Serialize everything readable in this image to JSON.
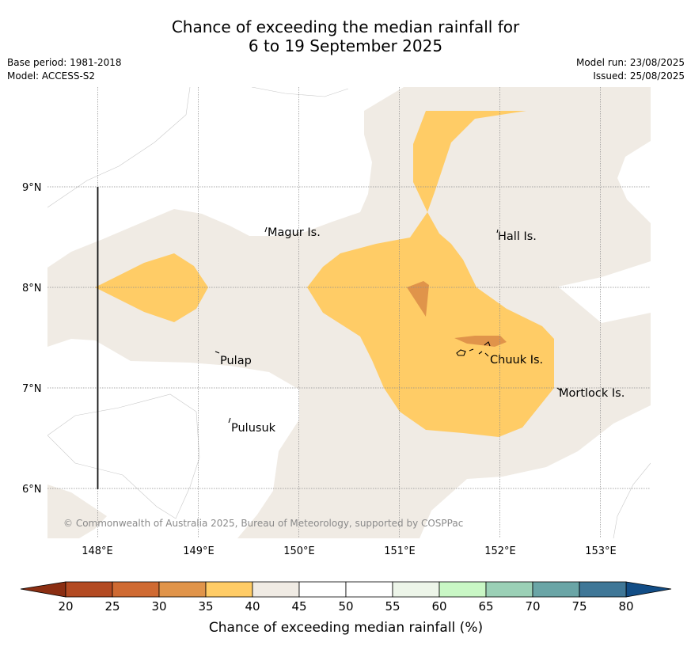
{
  "title_line1": "Chance of exceeding the median rainfall for",
  "title_line2": "6 to 19 September 2025",
  "base_period": "Base period: 1981-2018",
  "model": "Model: ACCESS-S2",
  "model_run": "Model run: 23/08/2025",
  "issued": "Issued: 25/08/2025",
  "map": {
    "lat_labels": [
      "9°N",
      "8°N",
      "7°N",
      "6°N"
    ],
    "lon_labels": [
      "148°E",
      "149°E",
      "150°E",
      "151°E",
      "152°E",
      "153°E"
    ],
    "places": [
      "Magur Is.",
      "Hall Is.",
      "Pulap",
      "Chuuk Is.",
      "Mortlock Is.",
      "Pulusuk"
    ],
    "credit": "© Commonwealth of Australia 2025, Bureau of Meteorology, supported by COSPPac",
    "colors": {
      "band_30_35": "#e0944a",
      "band_35_40": "#ffcc66",
      "band_40_45": "#f0ebe4",
      "background": "#ffffff"
    }
  },
  "colorbar": {
    "label": "Chance of exceeding median rainfall (%)",
    "ticks": [
      "20",
      "25",
      "30",
      "35",
      "40",
      "45",
      "50",
      "55",
      "60",
      "65",
      "70",
      "75",
      "80"
    ],
    "colors": [
      "#b34a22",
      "#cf6a32",
      "#e0944a",
      "#ffcc66",
      "#f0ebe4",
      "#ffffff",
      "#ffffff",
      "#edf5e9",
      "#c9f7c5",
      "#9bd0b6",
      "#6aa5a6",
      "#3f7797"
    ],
    "under_color": "#8b2e12",
    "over_color": "#124d86"
  }
}
